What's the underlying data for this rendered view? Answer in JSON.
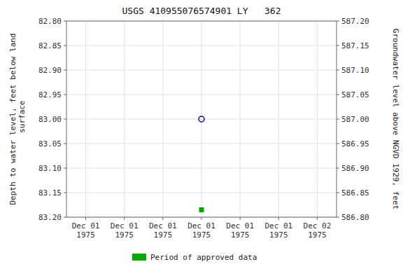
{
  "chart_data": {
    "type": "scatter",
    "title": "USGS 410955076574901 LY   362",
    "ylabel": "Depth to water level, feet below land\n surface",
    "y2label": "Groundwater level above NGVD 1929, feet",
    "categories": [
      "Dec 01\n1975",
      "Dec 01\n1975",
      "Dec 01\n1975",
      "Dec 01\n1975",
      "Dec 01\n1975",
      "Dec 01\n1975",
      "Dec 02\n1975"
    ],
    "series": [
      {
        "color": "#0000bb",
        "marker": "circle-open",
        "values": [
          null,
          null,
          null,
          83.0,
          null,
          null,
          null
        ]
      },
      {
        "name": "Period of approved data",
        "color": "#00aa00",
        "marker": "square",
        "values": [
          null,
          null,
          null,
          83.185,
          null,
          null,
          null
        ]
      }
    ],
    "ylim": [
      83.2,
      82.8
    ],
    "yticks": [
      {
        "value": 82.8,
        "label": "82.80"
      },
      82.85,
      {
        "value": 82.9,
        "label": "82.90"
      },
      82.95,
      {
        "value": 83.0,
        "label": "83.00"
      },
      83.05,
      {
        "value": 83.1,
        "label": "83.10"
      },
      83.15,
      {
        "value": 83.2,
        "label": "83.20"
      }
    ],
    "y2lim": [
      586.8,
      587.2
    ],
    "y2ticks": [
      {
        "value": 586.8,
        "label": "586.80"
      },
      586.85,
      {
        "value": 586.9,
        "label": "586.90"
      },
      586.95,
      {
        "value": 587.0,
        "label": "587.00"
      },
      587.05,
      {
        "value": 587.1,
        "label": "587.10"
      },
      587.15,
      {
        "value": 587.2,
        "label": "587.20"
      }
    ],
    "grid": true,
    "legend": "bottom"
  }
}
